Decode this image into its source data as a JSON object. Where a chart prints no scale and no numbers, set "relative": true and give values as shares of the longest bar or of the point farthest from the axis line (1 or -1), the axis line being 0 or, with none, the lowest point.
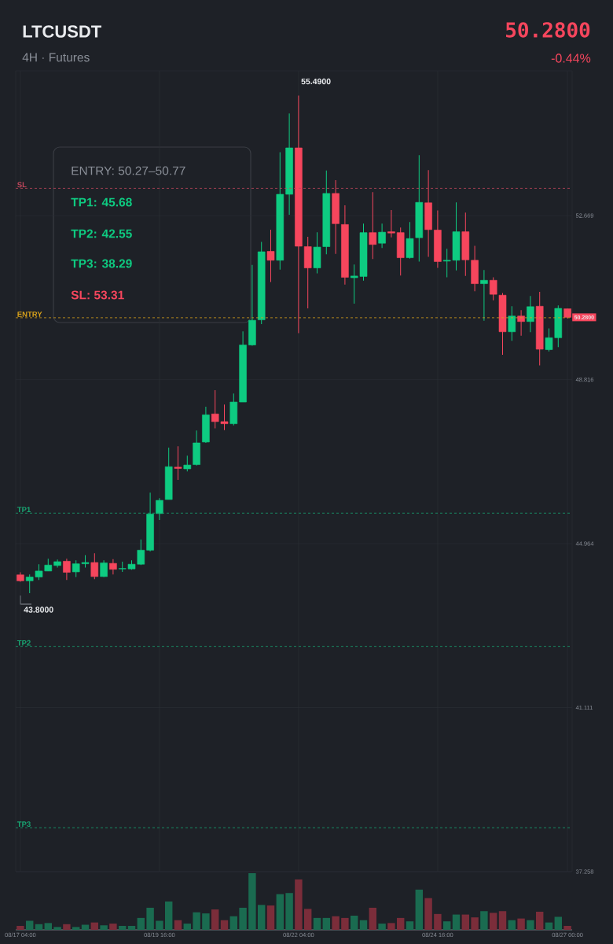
{
  "chart_data": [
    {
      "type": "candlestick",
      "title": "LTCUSDT",
      "subtitle": "4H · Futures",
      "categories": [
        "08/17 04:00",
        null,
        null,
        null,
        null,
        null,
        null,
        null,
        null,
        null,
        null,
        null,
        null,
        null,
        null,
        "08/19 16:00",
        null,
        null,
        null,
        null,
        null,
        null,
        null,
        null,
        null,
        null,
        null,
        null,
        null,
        null,
        "08/22 04:00",
        null,
        null,
        null,
        null,
        null,
        null,
        null,
        null,
        null,
        null,
        null,
        null,
        null,
        null,
        "08/24 16:00",
        null,
        null,
        null,
        null,
        null,
        null,
        null,
        null,
        null,
        null,
        null,
        null,
        null,
        "08/27 00:00"
      ],
      "ohlc": [
        [
          44.23,
          44.29,
          44.07,
          44.09
        ],
        [
          44.09,
          44.24,
          43.8,
          44.18
        ],
        [
          44.18,
          44.48,
          44.11,
          44.32
        ],
        [
          44.32,
          44.61,
          44.32,
          44.46
        ],
        [
          44.45,
          44.59,
          44.4,
          44.54
        ],
        [
          44.55,
          44.61,
          44.11,
          44.29
        ],
        [
          44.3,
          44.57,
          44.18,
          44.49
        ],
        [
          44.49,
          44.69,
          44.4,
          44.52
        ],
        [
          44.52,
          44.74,
          44.13,
          44.19
        ],
        [
          44.19,
          44.57,
          44.18,
          44.51
        ],
        [
          44.5,
          44.6,
          44.24,
          44.36
        ],
        [
          44.37,
          44.54,
          44.3,
          44.38
        ],
        [
          44.37,
          44.57,
          44.35,
          44.48
        ],
        [
          44.48,
          45.06,
          44.46,
          44.81
        ],
        [
          44.81,
          46.16,
          44.78,
          45.66
        ],
        [
          45.67,
          46.03,
          45.52,
          45.98
        ],
        [
          46.0,
          47.22,
          46.0,
          46.77
        ],
        [
          46.76,
          47.25,
          46.46,
          46.73
        ],
        [
          46.72,
          47.03,
          46.66,
          46.81
        ],
        [
          46.82,
          47.62,
          46.8,
          47.33
        ],
        [
          47.35,
          48.18,
          47.33,
          47.99
        ],
        [
          48.01,
          48.57,
          47.67,
          47.83
        ],
        [
          47.83,
          48.23,
          47.63,
          47.78
        ],
        [
          47.78,
          48.49,
          47.74,
          48.29
        ],
        [
          48.29,
          49.95,
          48.29,
          49.63
        ],
        [
          49.63,
          51.51,
          49.61,
          50.21
        ],
        [
          50.22,
          52.05,
          50.12,
          51.82
        ],
        [
          51.83,
          52.34,
          51.11,
          51.62
        ],
        [
          51.62,
          54.16,
          51.4,
          53.17
        ],
        [
          53.17,
          55.07,
          52.69,
          54.26
        ],
        [
          54.26,
          55.49,
          49.91,
          51.95
        ],
        [
          51.94,
          52.17,
          50.49,
          51.44
        ],
        [
          51.44,
          52.28,
          51.31,
          51.93
        ],
        [
          51.94,
          53.73,
          51.76,
          53.19
        ],
        [
          53.19,
          53.5,
          51.77,
          52.48
        ],
        [
          52.46,
          52.91,
          51.05,
          51.22
        ],
        [
          51.21,
          51.52,
          50.6,
          51.25
        ],
        [
          51.24,
          52.48,
          51.14,
          52.27
        ],
        [
          52.27,
          53.22,
          51.65,
          51.99
        ],
        [
          52.02,
          52.48,
          51.91,
          52.28
        ],
        [
          52.29,
          52.8,
          52.16,
          52.26
        ],
        [
          52.27,
          52.39,
          51.26,
          51.68
        ],
        [
          51.68,
          52.52,
          51.66,
          52.13
        ],
        [
          52.15,
          54.09,
          51.59,
          52.98
        ],
        [
          52.97,
          53.74,
          51.7,
          52.34
        ],
        [
          52.33,
          52.79,
          51.44,
          51.59
        ],
        [
          51.6,
          51.89,
          51.22,
          51.62
        ],
        [
          51.62,
          52.98,
          51.38,
          52.29
        ],
        [
          52.29,
          52.74,
          51.25,
          51.63
        ],
        [
          51.62,
          51.96,
          50.89,
          51.07
        ],
        [
          51.07,
          51.39,
          50.2,
          51.15
        ],
        [
          51.15,
          51.22,
          50.68,
          50.82
        ],
        [
          50.8,
          50.85,
          49.4,
          49.94
        ],
        [
          49.94,
          50.54,
          49.73,
          50.31
        ],
        [
          50.31,
          50.45,
          49.85,
          50.18
        ],
        [
          50.18,
          50.78,
          49.93,
          50.53
        ],
        [
          50.54,
          50.88,
          49.15,
          49.53
        ],
        [
          49.52,
          50.02,
          49.48,
          49.8
        ],
        [
          49.8,
          50.56,
          49.58,
          50.49
        ],
        [
          50.48,
          50.48,
          50.25,
          50.28
        ]
      ],
      "ylim": [
        37.258,
        56.07
      ],
      "yticks": [
        37.258,
        41.111,
        44.964,
        48.816,
        52.669
      ],
      "grid": true,
      "ref_lines": [
        {
          "axis": "y",
          "value": 53.31,
          "label": "SL",
          "color": "#c2475c",
          "line_style": "dashed"
        },
        {
          "axis": "y",
          "value": 50.27,
          "label": "ENTRY",
          "color": "#d9a21b",
          "line_style": "dashed"
        },
        {
          "axis": "y",
          "value": 45.68,
          "label": "TP1",
          "color": "#18a572",
          "line_style": "dashed"
        },
        {
          "axis": "y",
          "value": 42.55,
          "label": "TP2",
          "color": "#18a572",
          "line_style": "dashed"
        },
        {
          "axis": "y",
          "value": 38.29,
          "label": "TP3",
          "color": "#18a572",
          "line_style": "dashed"
        }
      ],
      "annotations": [
        "50.2800",
        "-0.44%",
        "ENTRY: 50.27–50.77",
        "TP1: 45.68",
        "TP2: 42.55",
        "TP3: 38.29",
        "SL: 53.31",
        {
          "text": "55.4900",
          "x": "08/22 04:00",
          "y": 55.49
        },
        "43.8000",
        {
          "text": "50.2800",
          "y": 50.28
        }
      ]
    },
    {
      "type": "bar",
      "relative": true,
      "categories": [
        null,
        null,
        null,
        null,
        null,
        null,
        null,
        null,
        null,
        null,
        null,
        null,
        null,
        null,
        null,
        null,
        null,
        null,
        null,
        null,
        null,
        null,
        null,
        null,
        null,
        null,
        null,
        null,
        null,
        null,
        null,
        null,
        null,
        null,
        null,
        null,
        null,
        null,
        null,
        null,
        null,
        null,
        null,
        null,
        null,
        null,
        null,
        null,
        null,
        null,
        null,
        null,
        null,
        null,
        null,
        null,
        null,
        null,
        null,
        null
      ],
      "values": [
        0.07,
        0.16,
        0.1,
        0.12,
        0.05,
        0.1,
        0.05,
        0.09,
        0.13,
        0.08,
        0.11,
        0.07,
        0.07,
        0.21,
        0.39,
        0.16,
        0.5,
        0.17,
        0.11,
        0.31,
        0.29,
        0.36,
        0.17,
        0.24,
        0.39,
        1,
        0.44,
        0.43,
        0.63,
        0.65,
        0.89,
        0.37,
        0.21,
        0.21,
        0.24,
        0.21,
        0.25,
        0.17,
        0.39,
        0.11,
        0.12,
        0.21,
        0.15,
        0.71,
        0.56,
        0.28,
        0.15,
        0.27,
        0.27,
        0.22,
        0.33,
        0.3,
        0.33,
        0.17,
        0.2,
        0.17,
        0.32,
        0.13,
        0.23,
        0.07
      ],
      "colors": [
        "#7b2d3a",
        "#1a6b50",
        "#1a6b50",
        "#1a6b50",
        "#1a6b50",
        "#7b2d3a",
        "#1a6b50",
        "#1a6b50",
        "#7b2d3a",
        "#1a6b50",
        "#7b2d3a",
        "#1a6b50",
        "#1a6b50",
        "#1a6b50",
        "#1a6b50",
        "#1a6b50",
        "#1a6b50",
        "#7b2d3a",
        "#1a6b50",
        "#1a6b50",
        "#1a6b50",
        "#7b2d3a",
        "#7b2d3a",
        "#1a6b50",
        "#1a6b50",
        "#1a6b50",
        "#1a6b50",
        "#7b2d3a",
        "#1a6b50",
        "#1a6b50",
        "#7b2d3a",
        "#7b2d3a",
        "#1a6b50",
        "#1a6b50",
        "#7b2d3a",
        "#7b2d3a",
        "#1a6b50",
        "#1a6b50",
        "#7b2d3a",
        "#1a6b50",
        "#7b2d3a",
        "#7b2d3a",
        "#1a6b50",
        "#1a6b50",
        "#7b2d3a",
        "#7b2d3a",
        "#1a6b50",
        "#1a6b50",
        "#7b2d3a",
        "#7b2d3a",
        "#1a6b50",
        "#7b2d3a",
        "#7b2d3a",
        "#1a6b50",
        "#7b2d3a",
        "#1a6b50",
        "#7b2d3a",
        "#1a6b50",
        "#1a6b50",
        "#7b2d3a"
      ]
    }
  ]
}
